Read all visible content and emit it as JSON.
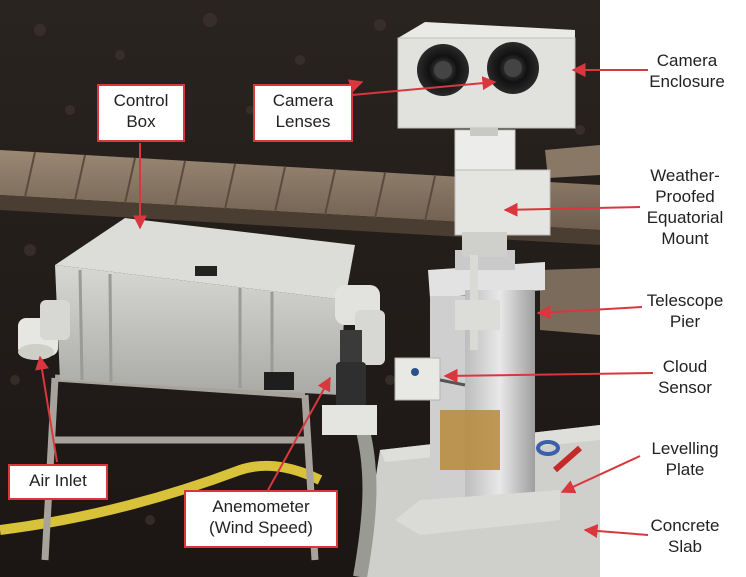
{
  "colors": {
    "accent": "#d9363e",
    "text": "#222222"
  },
  "labels": {
    "control_box": "Control\nBox",
    "camera_lenses": "Camera\nLenses",
    "air_inlet": "Air Inlet",
    "anemometer": "Anemometer\n(Wind Speed)",
    "camera_enclosure": "Camera\nEnclosure",
    "equatorial_mount": "Weather-\nProofed\nEquatorial\nMount",
    "telescope_pier": "Telescope\nPier",
    "cloud_sensor": "Cloud\nSensor",
    "levelling_plate": "Levelling\nPlate",
    "concrete_slab": "Concrete\nSlab"
  }
}
